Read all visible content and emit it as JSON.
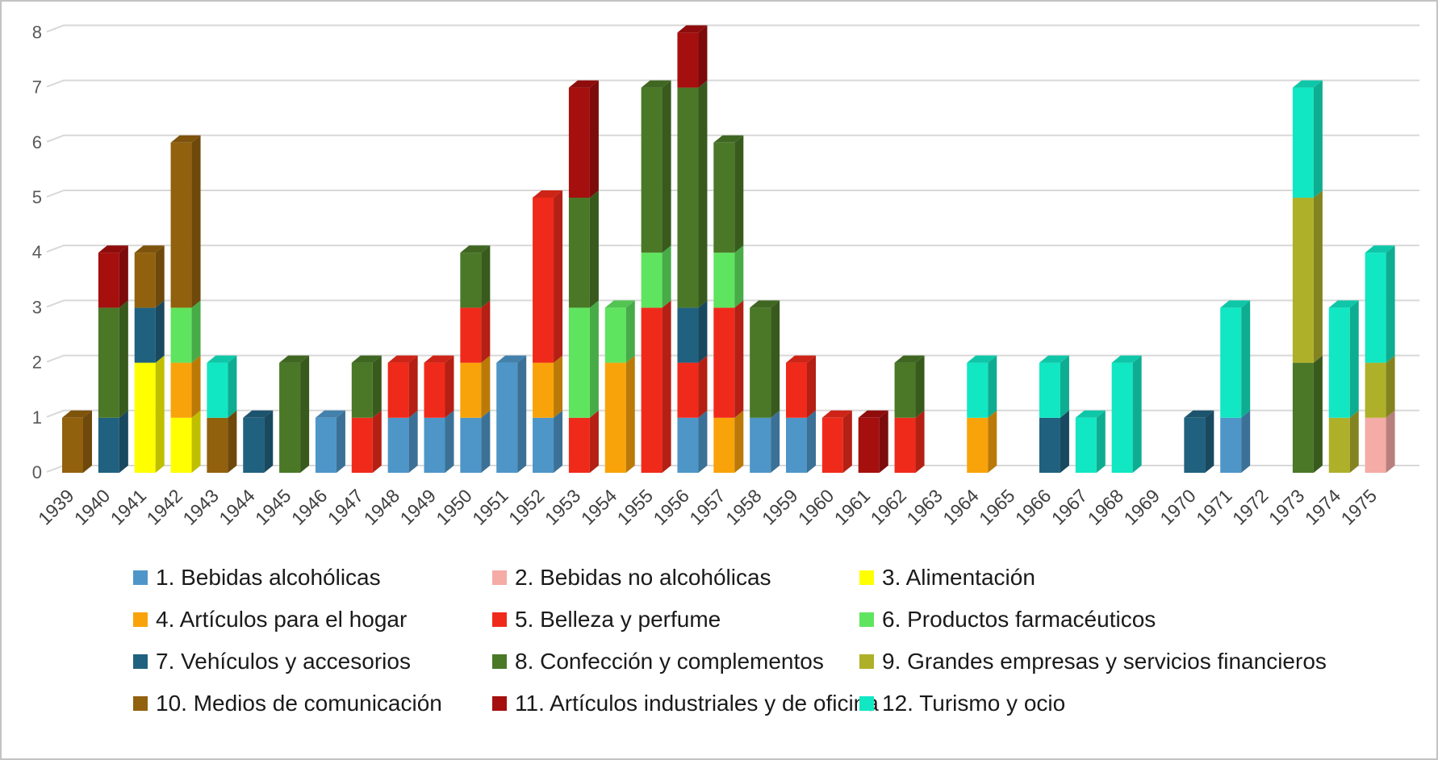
{
  "chart_data": {
    "type": "bar",
    "stacked": true,
    "effect_3d": true,
    "title": "",
    "xlabel": "",
    "ylabel": "",
    "ylim": [
      0,
      8
    ],
    "y_ticks": [
      0,
      1,
      2,
      3,
      4,
      5,
      6,
      7,
      8
    ],
    "grid": true,
    "legend_position": "bottom",
    "categories": [
      "1939",
      "1940",
      "1941",
      "1942",
      "1943",
      "1944",
      "1945",
      "1946",
      "1947",
      "1948",
      "1949",
      "1950",
      "1951",
      "1952",
      "1953",
      "1954",
      "1955",
      "1956",
      "1957",
      "1958",
      "1959",
      "1960",
      "1961",
      "1962",
      "1963",
      "1964",
      "1965",
      "1966",
      "1967",
      "1968",
      "1969",
      "1970",
      "1971",
      "1972",
      "1973",
      "1974",
      "1975"
    ],
    "series": [
      {
        "name": "1. Bebidas alcohólicas",
        "color": "#4E96C8",
        "values": [
          0,
          0,
          0,
          0,
          0,
          0,
          0,
          1,
          0,
          1,
          1,
          1,
          2,
          1,
          0,
          0,
          0,
          1,
          0,
          1,
          1,
          0,
          0,
          0,
          0,
          0,
          0,
          0,
          0,
          0,
          0,
          0,
          1,
          0,
          0,
          0,
          0
        ]
      },
      {
        "name": "2. Bebidas no alcohólicas",
        "color": "#F5ABA6",
        "values": [
          0,
          0,
          0,
          0,
          0,
          0,
          0,
          0,
          0,
          0,
          0,
          0,
          0,
          0,
          0,
          0,
          0,
          0,
          0,
          0,
          0,
          0,
          0,
          0,
          0,
          0,
          0,
          0,
          0,
          0,
          0,
          0,
          0,
          0,
          0,
          0,
          1
        ]
      },
      {
        "name": "3. Alimentación",
        "color": "#FFFF00",
        "values": [
          0,
          0,
          2,
          1,
          0,
          0,
          0,
          0,
          0,
          0,
          0,
          0,
          0,
          0,
          0,
          0,
          0,
          0,
          0,
          0,
          0,
          0,
          0,
          0,
          0,
          0,
          0,
          0,
          0,
          0,
          0,
          0,
          0,
          0,
          0,
          0,
          0
        ]
      },
      {
        "name": "4. Artículos para el hogar",
        "color": "#F9A30A",
        "values": [
          0,
          0,
          0,
          1,
          0,
          0,
          0,
          0,
          0,
          0,
          0,
          1,
          0,
          1,
          0,
          2,
          0,
          0,
          1,
          0,
          0,
          0,
          0,
          0,
          0,
          1,
          0,
          0,
          0,
          0,
          0,
          0,
          0,
          0,
          0,
          0,
          0
        ]
      },
      {
        "name": "5. Belleza y perfume",
        "color": "#F02A1B",
        "values": [
          0,
          0,
          0,
          0,
          0,
          0,
          0,
          0,
          1,
          1,
          1,
          1,
          0,
          3,
          1,
          0,
          3,
          1,
          2,
          0,
          1,
          1,
          0,
          1,
          0,
          0,
          0,
          0,
          0,
          0,
          0,
          0,
          0,
          0,
          0,
          0,
          0
        ]
      },
      {
        "name": "6. Productos farmacéuticos",
        "color": "#5FE45F",
        "values": [
          0,
          0,
          0,
          1,
          0,
          0,
          0,
          0,
          0,
          0,
          0,
          0,
          0,
          0,
          2,
          1,
          1,
          0,
          1,
          0,
          0,
          0,
          0,
          0,
          0,
          0,
          0,
          0,
          0,
          0,
          0,
          0,
          0,
          0,
          0,
          0,
          0
        ]
      },
      {
        "name": "7. Vehículos y accesorios",
        "color": "#20617F",
        "values": [
          0,
          1,
          1,
          0,
          0,
          1,
          0,
          0,
          0,
          0,
          0,
          0,
          0,
          0,
          0,
          0,
          0,
          1,
          0,
          0,
          0,
          0,
          0,
          0,
          0,
          0,
          0,
          1,
          0,
          0,
          0,
          1,
          0,
          0,
          0,
          0,
          0
        ]
      },
      {
        "name": "8. Confección y complementos",
        "color": "#4A7827",
        "values": [
          0,
          2,
          0,
          0,
          0,
          0,
          2,
          0,
          1,
          0,
          0,
          1,
          0,
          0,
          2,
          0,
          3,
          4,
          2,
          2,
          0,
          0,
          0,
          1,
          0,
          0,
          0,
          0,
          0,
          0,
          0,
          0,
          0,
          0,
          2,
          0,
          0
        ]
      },
      {
        "name": "9. Grandes empresas y servicios financieros",
        "color": "#AFB02A",
        "values": [
          0,
          0,
          0,
          0,
          0,
          0,
          0,
          0,
          0,
          0,
          0,
          0,
          0,
          0,
          0,
          0,
          0,
          0,
          0,
          0,
          0,
          0,
          0,
          0,
          0,
          0,
          0,
          0,
          0,
          0,
          0,
          0,
          0,
          0,
          3,
          1,
          1
        ]
      },
      {
        "name": "10. Medios de comunicación",
        "color": "#92610E",
        "values": [
          1,
          0,
          1,
          3,
          1,
          0,
          0,
          0,
          0,
          0,
          0,
          0,
          0,
          0,
          0,
          0,
          0,
          0,
          0,
          0,
          0,
          0,
          0,
          0,
          0,
          0,
          0,
          0,
          0,
          0,
          0,
          0,
          0,
          0,
          0,
          0,
          0
        ]
      },
      {
        "name": "11. Artículos industriales y de oficina",
        "color": "#A50F0E",
        "values": [
          0,
          1,
          0,
          0,
          0,
          0,
          0,
          0,
          0,
          0,
          0,
          0,
          0,
          0,
          2,
          0,
          0,
          1,
          0,
          0,
          0,
          0,
          1,
          0,
          0,
          0,
          0,
          0,
          0,
          0,
          0,
          0,
          0,
          0,
          0,
          0,
          0
        ]
      },
      {
        "name": "12. Turismo y ocio",
        "color": "#12E7C3",
        "values": [
          0,
          0,
          0,
          0,
          1,
          0,
          0,
          0,
          0,
          0,
          0,
          0,
          0,
          0,
          0,
          0,
          0,
          0,
          0,
          0,
          0,
          0,
          0,
          0,
          0,
          1,
          0,
          1,
          1,
          2,
          0,
          0,
          2,
          0,
          2,
          2,
          2
        ]
      }
    ]
  },
  "axes": {
    "y_tick_color": "#595959",
    "x_tick_color": "#404040",
    "gridline_color": "#D8D8D8"
  }
}
